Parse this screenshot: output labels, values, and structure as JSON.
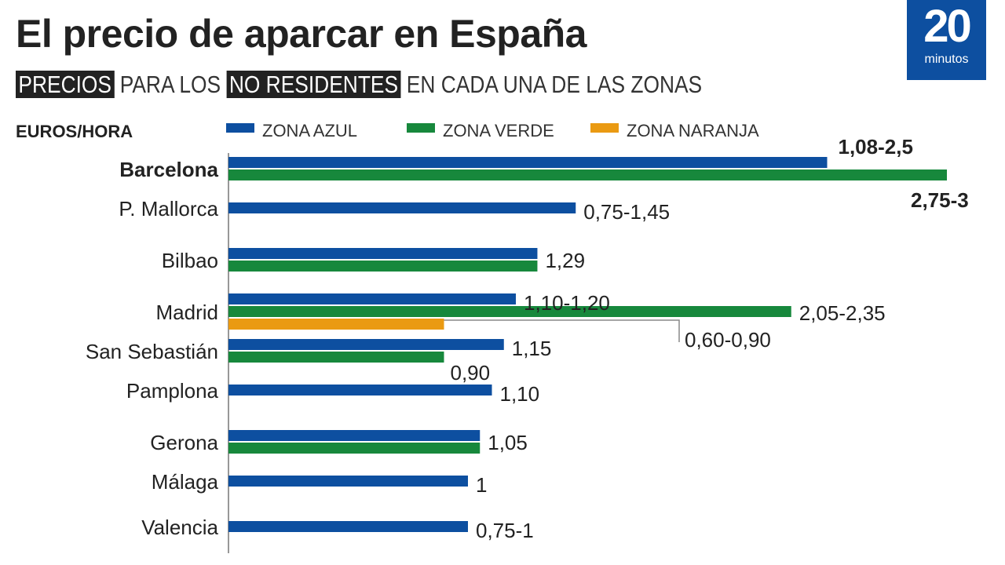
{
  "title": "El precio de aparcar en España",
  "subtitle": {
    "hl1": "PRECIOS",
    "t1": " PARA LOS ",
    "hl2": "NO RESIDENTES",
    "t2": " EN CADA UNA DE LAS ZONAS"
  },
  "logo": {
    "number": "20",
    "word": "minutos"
  },
  "chart_data": {
    "type": "bar",
    "orientation": "horizontal",
    "unit_label": "EUROS/HORA",
    "categories": [
      "Barcelona",
      "P. Mallorca",
      "Bilbao",
      "Madrid",
      "San Sebastián",
      "Pamplona",
      "Gerona",
      "Málaga",
      "Valencia"
    ],
    "series": [
      {
        "name": "ZONA AZUL",
        "color": "#0d4fa0",
        "values": [
          2.5,
          1.45,
          1.29,
          1.2,
          1.15,
          1.1,
          1.05,
          1,
          1
        ]
      },
      {
        "name": "ZONA VERDE",
        "color": "#17883c",
        "values": [
          3,
          null,
          1.29,
          2.35,
          0.9,
          null,
          1.05,
          null,
          null
        ]
      },
      {
        "name": "ZONA NARANJA",
        "color": "#ea9a12",
        "values": [
          null,
          null,
          null,
          0.9,
          null,
          null,
          null,
          null,
          null
        ]
      }
    ],
    "data_labels": [
      [
        "1,08-2,5",
        "2,75-3",
        null
      ],
      [
        "0,75-1,45",
        null,
        null
      ],
      [
        "1,29",
        null,
        null
      ],
      [
        "1,10-1,20",
        "2,05-2,35",
        "0,60-0,90"
      ],
      [
        "1,15",
        "0,90",
        null
      ],
      [
        "1,10",
        null,
        null
      ],
      [
        "1,05",
        null,
        null
      ],
      [
        "1",
        null,
        null
      ],
      [
        "0,75-1",
        null,
        null
      ]
    ],
    "legend": "top",
    "grid": false
  }
}
